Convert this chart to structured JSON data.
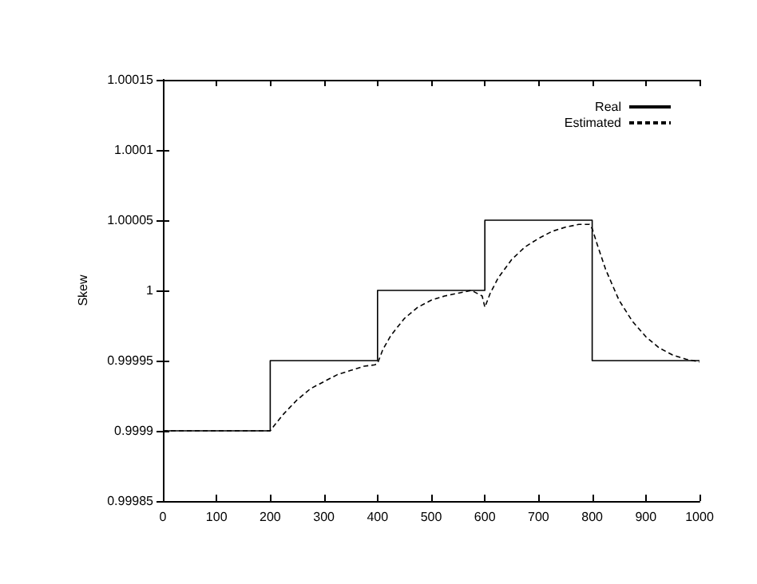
{
  "chart_data": {
    "type": "line",
    "ylabel": "Skew",
    "xlim": [
      0,
      1000
    ],
    "xticks": [
      0,
      100,
      200,
      300,
      400,
      500,
      600,
      700,
      800,
      900,
      1000
    ],
    "ylim": [
      0.99985,
      1.00015
    ],
    "yticks": [
      0.99985,
      0.9999,
      0.99995,
      1,
      1.00005,
      1.0001,
      1.00015
    ],
    "grid": false,
    "legend": "top right",
    "marker": "none",
    "series": [
      {
        "name": "Real",
        "type": "step",
        "color": "#000000",
        "line_style": "solid",
        "x": [
          0,
          200,
          400,
          600,
          800,
          1000
        ],
        "values": [
          0.9999,
          0.99995,
          1,
          1.00005,
          0.99995,
          0.99995
        ]
      },
      {
        "name": "Estimated",
        "type": "line",
        "color": "#000000",
        "line_style": "dashed",
        "x": [
          0,
          50,
          100,
          150,
          200,
          210,
          225,
          250,
          275,
          300,
          325,
          350,
          375,
          395,
          400,
          410,
          425,
          450,
          475,
          500,
          525,
          550,
          575,
          595,
          600,
          610,
          625,
          650,
          675,
          700,
          725,
          750,
          775,
          795,
          800,
          810,
          825,
          850,
          875,
          900,
          925,
          950,
          975,
          1000
        ],
        "values": [
          0.9999,
          0.9999,
          0.9999,
          0.9999,
          0.9999,
          0.999905,
          0.999912,
          0.999922,
          0.99993,
          0.999935,
          0.99994,
          0.999943,
          0.999946,
          0.999947,
          0.999948,
          0.999958,
          0.999968,
          0.99998,
          0.999988,
          0.999993,
          0.999996,
          0.999998,
          1.0,
          0.999996,
          0.999988,
          0.999998,
          1.000009,
          1.000022,
          1.000031,
          1.000037,
          1.000042,
          1.000045,
          1.000047,
          1.000047,
          1.000044,
          1.000032,
          1.000015,
          0.999993,
          0.999978,
          0.999967,
          0.999959,
          0.999954,
          0.999951,
          0.999949
        ]
      }
    ]
  }
}
